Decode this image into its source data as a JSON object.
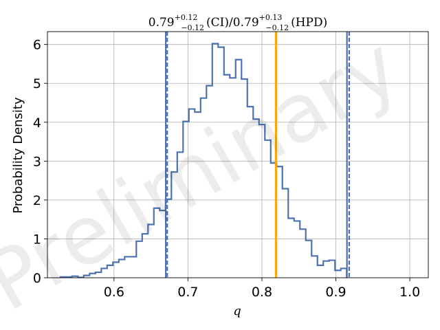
{
  "chart_data": {
    "type": "step-histogram",
    "title": {
      "ci_center": "0.79",
      "ci_upper": "+0.12",
      "ci_lower": "−0.12",
      "ci_tag": "(CI)",
      "separator": "/",
      "hpd_center": "0.79",
      "hpd_upper": "+0.13",
      "hpd_lower": "−0.12",
      "hpd_tag": "(HPD)"
    },
    "xlabel": "q",
    "ylabel": "Probability Density",
    "watermark": "Preliminary",
    "xlim": [
      0.51,
      1.025
    ],
    "ylim": [
      0,
      6.33
    ],
    "grid": true,
    "xticks": [
      0.6,
      0.7,
      0.8,
      0.9,
      1.0
    ],
    "xtick_labels": [
      "0.6",
      "0.7",
      "0.8",
      "0.9",
      "1.0"
    ],
    "yticks": [
      0,
      1,
      2,
      3,
      4,
      5,
      6
    ],
    "ytick_labels": [
      "0",
      "1",
      "2",
      "3",
      "4",
      "5",
      "6"
    ],
    "bins": {
      "start": 0.5275,
      "width": 0.0079,
      "values": [
        0.02,
        0.02,
        0.04,
        0.01,
        0.06,
        0.11,
        0.14,
        0.24,
        0.32,
        0.4,
        0.47,
        0.54,
        0.54,
        0.94,
        1.13,
        1.37,
        1.79,
        1.73,
        2.02,
        2.72,
        3.23,
        4.02,
        4.34,
        4.26,
        4.62,
        4.94,
        6.02,
        5.93,
        5.22,
        5.14,
        5.61,
        5.11,
        4.4,
        4.08,
        3.94,
        3.54,
        2.95,
        2.86,
        2.29,
        1.53,
        1.46,
        1.25,
        0.96,
        0.56,
        0.32,
        0.43,
        0.45,
        0.19,
        0.24
      ]
    },
    "step_color": "#4c72b0",
    "vlines": [
      {
        "x": 0.67,
        "color": "#4c72b0",
        "style": "solid"
      },
      {
        "x": 0.672,
        "color": "#4c72b0",
        "style": "dashed"
      },
      {
        "x": 0.915,
        "color": "#4c72b0",
        "style": "solid"
      },
      {
        "x": 0.918,
        "color": "#4c72b0",
        "style": "dashed"
      },
      {
        "x": 0.819,
        "color": "#ffa500",
        "style": "solid"
      }
    ]
  }
}
